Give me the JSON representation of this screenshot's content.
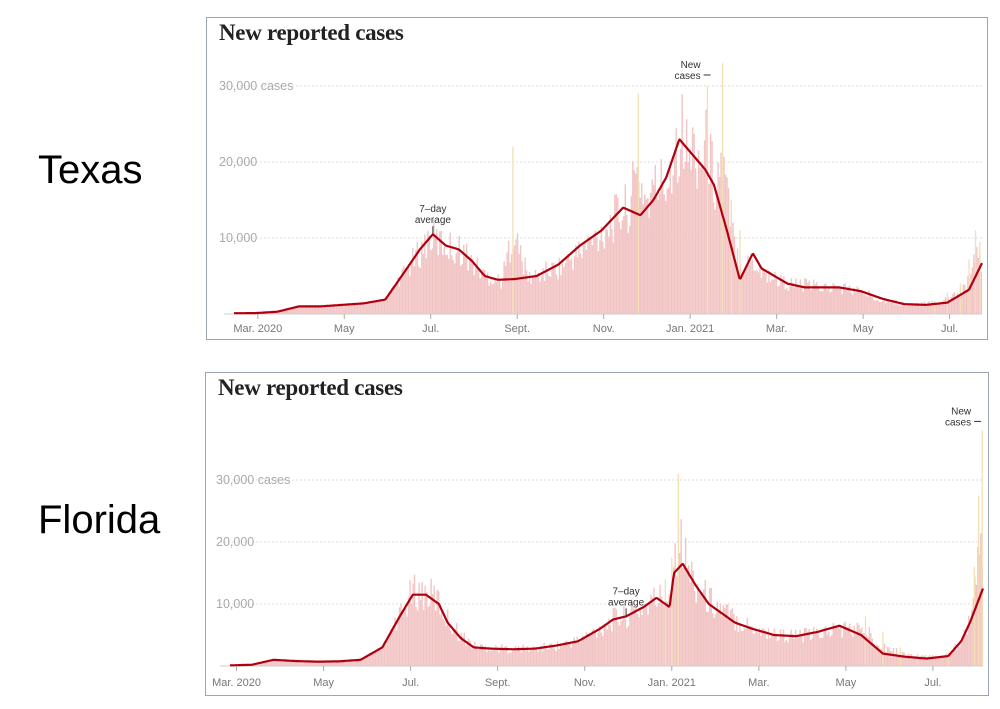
{
  "state_labels": {
    "texas": "Texas",
    "florida": "Florida"
  },
  "colors": {
    "line": "#b0000f",
    "bar": "#f2c4c4",
    "spike": "#f3dfb4",
    "grid": "#dddddd",
    "panel_border": "#9aa6b6"
  },
  "chart_data": [
    {
      "type": "bar",
      "state": "Texas",
      "title": "New reported cases",
      "y_unit_label": "30,000 cases",
      "ytick_labels": [
        "10,000",
        "20,000"
      ],
      "yticks": [
        10000,
        20000,
        30000
      ],
      "ylim": [
        0,
        32000
      ],
      "xlim": [
        0,
        17.3
      ],
      "xtick_labels": [
        "Mar. 2020",
        "May",
        "Jul.",
        "Sept.",
        "Nov.",
        "Jan. 2021",
        "Mar.",
        "May",
        "Jul."
      ],
      "xticks": [
        0.55,
        2.55,
        4.55,
        6.55,
        8.55,
        10.55,
        12.55,
        14.55,
        16.55
      ],
      "series": [
        {
          "name": "7-day average",
          "x": [
            0,
            0.5,
            1,
            1.5,
            2,
            2.5,
            3,
            3.5,
            4,
            4.3,
            4.6,
            4.9,
            5.2,
            5.5,
            5.8,
            6.1,
            6.5,
            7,
            7.5,
            8,
            8.5,
            9,
            9.4,
            9.7,
            10,
            10.3,
            10.6,
            10.9,
            11.1,
            11.4,
            11.7,
            12,
            12.2,
            12.5,
            12.8,
            13.2,
            13.6,
            14,
            14.5,
            15,
            15.5,
            16,
            16.5,
            17,
            17.3
          ],
          "values": [
            100,
            120,
            300,
            1000,
            1000,
            1200,
            1400,
            1900,
            6000,
            8500,
            10500,
            9000,
            8500,
            7000,
            5000,
            4500,
            4600,
            5000,
            6500,
            9000,
            11000,
            14000,
            13000,
            15000,
            18000,
            23000,
            21000,
            19000,
            17000,
            11000,
            4500,
            8000,
            6000,
            5000,
            4000,
            3500,
            3500,
            3500,
            3000,
            2000,
            1300,
            1200,
            1500,
            3200,
            6700
          ]
        },
        {
          "name": "New cases",
          "x": [
            3.7,
            3.9,
            4.1,
            4.3,
            4.5,
            4.7,
            4.9,
            5.1,
            5.3,
            5.5,
            5.7,
            5.9,
            6.2,
            6.45,
            6.8,
            7.2,
            7.6,
            8.0,
            8.3,
            8.6,
            8.9,
            9.1,
            9.35,
            9.55,
            9.8,
            10.0,
            10.2,
            10.35,
            10.5,
            10.65,
            10.8,
            10.95,
            11.1,
            11.3,
            11.5,
            11.7,
            11.9,
            12.1,
            12.3,
            12.6,
            12.9,
            13.2,
            13.5,
            13.8,
            14.1,
            14.4,
            14.7,
            15.0,
            15.3,
            15.6,
            15.9,
            16.2,
            16.5,
            16.8,
            17.0,
            17.15,
            17.25
          ],
          "values": [
            2800,
            4800,
            7000,
            8000,
            11000,
            9500,
            10000,
            9000,
            9500,
            7000,
            6000,
            5500,
            4500,
            22000,
            5000,
            5800,
            6000,
            7500,
            9500,
            12000,
            13500,
            15000,
            29000,
            17000,
            20000,
            17500,
            24000,
            29500,
            20000,
            26000,
            23000,
            30000,
            19000,
            33000,
            15000,
            11000,
            6500,
            5500,
            5000,
            4500,
            4200,
            4500,
            4000,
            3500,
            3800,
            3200,
            2500,
            2000,
            1600,
            1400,
            1600,
            1800,
            2800,
            4000,
            7200,
            11000,
            9500
          ]
        }
      ],
      "annotations": [
        {
          "text_lines": [
            "7–day",
            "average"
          ],
          "x": 4.6,
          "value": 10500
        },
        {
          "text_lines": [
            "New",
            "cases"
          ],
          "x": 11.0,
          "value": 30000
        }
      ]
    },
    {
      "type": "bar",
      "state": "Florida",
      "title": "New reported cases",
      "y_unit_label": "30,000 cases",
      "ytick_labels": [
        "10,000",
        "20,000"
      ],
      "yticks": [
        10000,
        20000,
        30000
      ],
      "ylim": [
        0,
        40000
      ],
      "xlim": [
        0,
        17.3
      ],
      "xtick_labels": [
        "Mar. 2020",
        "May",
        "Jul.",
        "Sept.",
        "Nov.",
        "Jan. 2021",
        "Mar.",
        "May",
        "Jul."
      ],
      "xticks": [
        0.15,
        2.15,
        4.15,
        6.15,
        8.15,
        10.15,
        12.15,
        14.15,
        16.15
      ],
      "series": [
        {
          "name": "7-day average",
          "x": [
            0,
            0.5,
            1,
            1.5,
            2,
            2.5,
            3,
            3.5,
            3.9,
            4.2,
            4.5,
            4.8,
            5,
            5.3,
            5.6,
            6,
            6.5,
            7,
            7.5,
            8,
            8.5,
            8.8,
            9.1,
            9.5,
            9.8,
            10.1,
            10.2,
            10.4,
            10.7,
            11,
            11.3,
            11.6,
            12,
            12.5,
            13,
            13.5,
            14,
            14.5,
            15,
            15.5,
            16,
            16.5,
            16.8,
            17,
            17.3
          ],
          "values": [
            100,
            200,
            1000,
            800,
            700,
            750,
            1000,
            3000,
            8000,
            11500,
            11500,
            10000,
            7000,
            4500,
            3000,
            2800,
            2700,
            2800,
            3300,
            4000,
            6000,
            7500,
            8000,
            9500,
            11000,
            9500,
            15000,
            16500,
            13000,
            10000,
            8500,
            7000,
            6000,
            5000,
            4800,
            5500,
            6500,
            5000,
            2000,
            1500,
            1200,
            1600,
            4000,
            7000,
            12500
          ]
        },
        {
          "name": "New cases",
          "x": [
            3.7,
            3.9,
            4.1,
            4.3,
            4.5,
            4.7,
            4.9,
            5.1,
            5.3,
            5.6,
            6.0,
            6.5,
            7.0,
            7.5,
            8.0,
            8.5,
            8.9,
            9.2,
            9.5,
            9.8,
            10.0,
            10.15,
            10.3,
            10.5,
            10.7,
            10.9,
            11.1,
            11.3,
            11.6,
            11.9,
            12.2,
            12.6,
            13.0,
            13.4,
            13.8,
            14.2,
            14.6,
            15.0,
            15.4,
            15.8,
            16.2,
            16.5,
            16.8,
            17.0,
            17.1,
            17.2,
            17.28
          ],
          "values": [
            5000,
            8000,
            12000,
            14000,
            12500,
            13000,
            10000,
            8000,
            6000,
            4000,
            3300,
            3000,
            3000,
            3500,
            4500,
            6500,
            8500,
            9000,
            10000,
            11500,
            14000,
            17500,
            31000,
            19000,
            15000,
            13000,
            12000,
            10500,
            9000,
            7500,
            6500,
            5500,
            5200,
            5000,
            5500,
            6500,
            8000,
            5500,
            3000,
            2000,
            1800,
            2200,
            5000,
            9000,
            16000,
            27500,
            38000
          ]
        }
      ],
      "annotations": [
        {
          "text_lines": [
            "7–day",
            "average"
          ],
          "x": 9.1,
          "value": 8000
        },
        {
          "text_lines": [
            "New",
            "cases"
          ],
          "x": 17.28,
          "value": 38000
        }
      ]
    }
  ]
}
